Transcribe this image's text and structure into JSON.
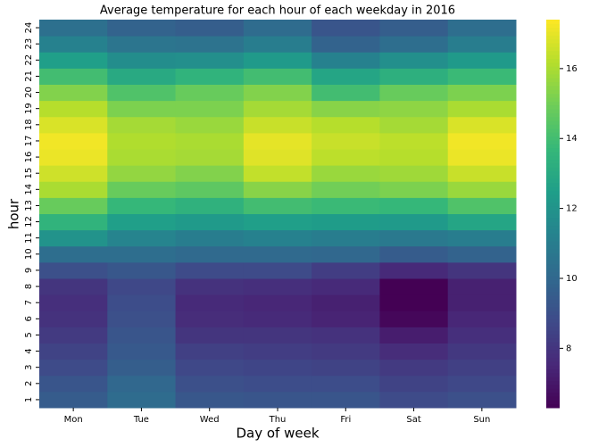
{
  "chart_data": {
    "type": "heatmap",
    "title": "Average temperature for each hour of each weekday in 2016",
    "x_label": "Day of week",
    "y_label": "hour",
    "categories": [
      "Mon",
      "Tue",
      "Wed",
      "Thu",
      "Fri",
      "Sat",
      "Sun"
    ],
    "rows": [
      "1",
      "2",
      "3",
      "4",
      "5",
      "6",
      "7",
      "8",
      "9",
      "10",
      "11",
      "12",
      "13",
      "14",
      "15",
      "16",
      "17",
      "18",
      "19",
      "20",
      "21",
      "22",
      "23",
      "24"
    ],
    "values": [
      [
        9.5,
        10.2,
        9.3,
        9.2,
        9.2,
        8.8,
        9.0
      ],
      [
        9.2,
        10.0,
        9.0,
        8.9,
        8.9,
        8.5,
        8.7
      ],
      [
        8.8,
        9.6,
        8.7,
        8.6,
        8.5,
        8.2,
        8.4
      ],
      [
        8.5,
        9.4,
        8.4,
        8.3,
        8.2,
        7.7,
        8.1
      ],
      [
        8.2,
        9.2,
        8.0,
        8.0,
        7.9,
        7.2,
        7.8
      ],
      [
        7.9,
        9.0,
        7.7,
        7.6,
        7.4,
        6.5,
        7.5
      ],
      [
        7.8,
        8.9,
        7.6,
        7.5,
        7.3,
        6.3,
        7.3
      ],
      [
        8.0,
        8.7,
        7.9,
        7.8,
        7.6,
        6.3,
        7.3
      ],
      [
        9.0,
        9.3,
        8.8,
        8.8,
        8.3,
        7.6,
        8.0
      ],
      [
        10.3,
        10.3,
        10.1,
        10.1,
        10.0,
        9.5,
        9.8
      ],
      [
        12.0,
        11.3,
        11.0,
        11.2,
        11.0,
        10.8,
        11.0
      ],
      [
        13.5,
        12.5,
        12.3,
        12.5,
        12.4,
        12.3,
        12.8
      ],
      [
        14.8,
        13.7,
        13.4,
        14.0,
        13.8,
        13.7,
        14.3
      ],
      [
        16.0,
        14.8,
        14.6,
        15.4,
        15.0,
        15.2,
        15.7
      ],
      [
        16.6,
        15.6,
        15.3,
        16.4,
        15.7,
        15.8,
        16.5
      ],
      [
        17.1,
        16.0,
        15.9,
        16.9,
        16.3,
        16.2,
        17.1
      ],
      [
        17.2,
        16.1,
        16.0,
        17.0,
        16.5,
        16.3,
        17.2
      ],
      [
        16.8,
        15.9,
        15.7,
        16.5,
        16.2,
        15.9,
        16.8
      ],
      [
        16.2,
        15.2,
        15.2,
        15.9,
        15.4,
        15.5,
        16.0
      ],
      [
        15.3,
        14.3,
        14.8,
        15.3,
        14.0,
        14.8,
        15.2
      ],
      [
        14.0,
        13.0,
        13.5,
        14.0,
        12.8,
        13.3,
        13.8
      ],
      [
        12.5,
        11.7,
        11.8,
        12.3,
        11.2,
        11.8,
        12.3
      ],
      [
        11.2,
        10.6,
        10.5,
        11.0,
        9.8,
        10.3,
        11.0
      ],
      [
        10.4,
        9.8,
        9.6,
        10.2,
        9.2,
        9.6,
        10.3
      ]
    ],
    "colormap": "viridis",
    "zlim": [
      6.3,
      17.4
    ],
    "zticks": [
      8,
      10,
      12,
      14,
      16
    ]
  }
}
